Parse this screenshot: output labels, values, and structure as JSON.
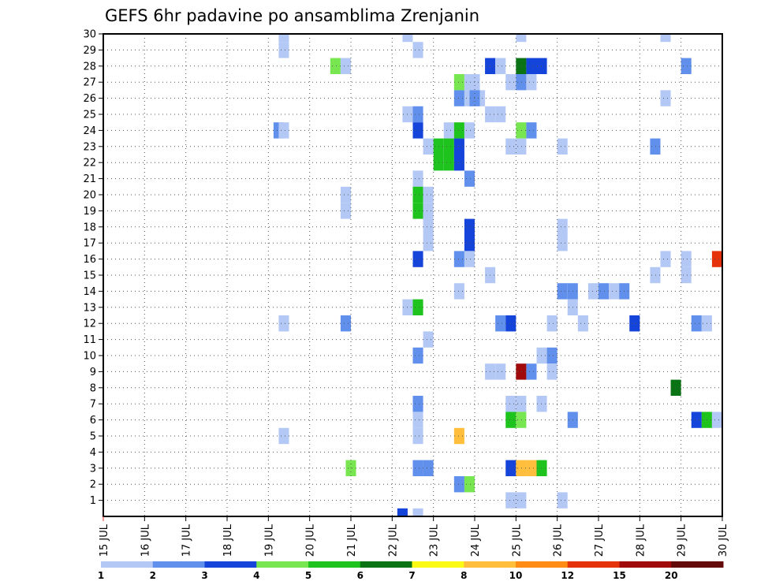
{
  "chart_data": {
    "type": "heatmap",
    "title": "GEFS 6hr padavine po ansamblima Zrenjanin",
    "xlabel": "",
    "ylabel": "",
    "x_tick_labels": [
      "15 JUL",
      "16 JUL",
      "17 JUL",
      "18 JUL",
      "19 JUL",
      "20 JUL",
      "21 JUL",
      "22 JUL",
      "23 JUL",
      "24 JUL",
      "25 JUL",
      "26 JUL",
      "27 JUL",
      "28 JUL",
      "29 JUL",
      "30 JUL"
    ],
    "y_tick_labels": [
      "1",
      "2",
      "3",
      "4",
      "5",
      "6",
      "7",
      "8",
      "9",
      "10",
      "11",
      "12",
      "13",
      "14",
      "15",
      "16",
      "17",
      "18",
      "19",
      "20",
      "21",
      "22",
      "23",
      "24",
      "25",
      "26",
      "27",
      "28",
      "29",
      "30"
    ],
    "xlim": [
      0,
      60
    ],
    "ylim": [
      0,
      30
    ],
    "grid": true,
    "colorbar": {
      "levels": [
        "1",
        "2",
        "3",
        "4",
        "5",
        "6",
        "7",
        "8",
        "10",
        "12",
        "15",
        "20"
      ],
      "colors": [
        "#b4c8f5",
        "#6090eb",
        "#1444d9",
        "#78e650",
        "#1ec31e",
        "#0a7414",
        "#fafa14",
        "#ffbe3c",
        "#ff8c14",
        "#e6320a",
        "#a00a0a",
        "#640a0a"
      ]
    },
    "cells": [
      [
        17.5,
        30,
        1
      ],
      [
        29.5,
        30,
        1
      ],
      [
        40.5,
        30,
        1
      ],
      [
        54.5,
        30,
        1
      ],
      [
        17.5,
        29,
        1
      ],
      [
        30.5,
        29,
        1
      ],
      [
        22.5,
        28,
        4
      ],
      [
        23.5,
        28,
        1
      ],
      [
        37.5,
        28,
        3
      ],
      [
        38.5,
        28,
        1
      ],
      [
        40.5,
        28,
        6
      ],
      [
        41.5,
        28,
        3
      ],
      [
        42.5,
        28,
        3
      ],
      [
        56.5,
        28,
        2
      ],
      [
        36,
        27,
        1
      ],
      [
        34.5,
        27,
        4
      ],
      [
        35.5,
        27,
        1
      ],
      [
        39.5,
        27,
        1
      ],
      [
        40.5,
        27,
        2
      ],
      [
        41.5,
        27,
        1
      ],
      [
        34.5,
        26,
        2
      ],
      [
        35.5,
        26,
        1
      ],
      [
        36.5,
        26,
        1
      ],
      [
        36,
        26,
        2
      ],
      [
        54.5,
        26,
        1
      ],
      [
        29.5,
        25,
        1
      ],
      [
        30.5,
        25,
        2
      ],
      [
        37.5,
        25,
        1
      ],
      [
        38.5,
        25,
        1
      ],
      [
        17,
        24,
        2
      ],
      [
        17.5,
        24,
        1
      ],
      [
        30.5,
        24,
        3
      ],
      [
        33.5,
        24,
        1
      ],
      [
        34.5,
        24,
        5
      ],
      [
        35.5,
        24,
        1
      ],
      [
        40.5,
        24,
        4
      ],
      [
        41.5,
        24,
        2
      ],
      [
        31.5,
        23,
        1
      ],
      [
        32.5,
        23,
        5
      ],
      [
        33.5,
        23,
        5
      ],
      [
        34.5,
        23,
        3
      ],
      [
        39.5,
        23,
        1
      ],
      [
        40.5,
        23,
        1
      ],
      [
        44.5,
        23,
        1
      ],
      [
        53.5,
        23,
        2
      ],
      [
        32.5,
        22,
        5
      ],
      [
        33.5,
        22,
        5
      ],
      [
        34.5,
        22,
        3
      ],
      [
        30.5,
        21,
        1
      ],
      [
        35.5,
        21,
        2
      ],
      [
        30.5,
        20,
        5
      ],
      [
        31.5,
        20,
        1
      ],
      [
        23.5,
        20,
        1
      ],
      [
        30.5,
        19,
        5
      ],
      [
        31.5,
        19,
        1
      ],
      [
        23.5,
        19,
        1
      ],
      [
        31.5,
        18,
        1
      ],
      [
        35.5,
        18,
        3
      ],
      [
        44.5,
        18,
        1
      ],
      [
        31.5,
        17,
        1
      ],
      [
        35.5,
        17,
        3
      ],
      [
        44.5,
        17,
        1
      ],
      [
        30.5,
        16,
        3
      ],
      [
        34.5,
        16,
        2
      ],
      [
        35.5,
        16,
        1
      ],
      [
        54.5,
        16,
        1
      ],
      [
        56.5,
        16,
        1
      ],
      [
        59.5,
        16,
        13
      ],
      [
        60.5,
        16,
        1
      ],
      [
        37.5,
        15,
        1
      ],
      [
        53.5,
        15,
        1
      ],
      [
        56.5,
        15,
        1
      ],
      [
        34.5,
        14,
        1
      ],
      [
        44.5,
        14,
        2
      ],
      [
        45.5,
        14,
        2
      ],
      [
        47.5,
        14,
        1
      ],
      [
        48.5,
        14,
        2
      ],
      [
        49.5,
        14,
        1
      ],
      [
        50.5,
        14,
        2
      ],
      [
        29.5,
        13,
        1
      ],
      [
        30.5,
        13,
        5
      ],
      [
        45.5,
        13,
        1
      ],
      [
        17.5,
        12,
        1
      ],
      [
        23.5,
        12,
        2
      ],
      [
        38.5,
        12,
        2
      ],
      [
        39.5,
        12,
        3
      ],
      [
        43.5,
        12,
        1
      ],
      [
        46.5,
        12,
        1
      ],
      [
        51.5,
        12,
        3
      ],
      [
        57.5,
        12,
        2
      ],
      [
        58.5,
        12,
        1
      ],
      [
        60.5,
        12,
        3
      ],
      [
        31.5,
        11,
        1
      ],
      [
        30.5,
        10,
        2
      ],
      [
        42.5,
        10,
        1
      ],
      [
        43.5,
        10,
        2
      ],
      [
        37.5,
        9,
        1
      ],
      [
        38.5,
        9,
        1
      ],
      [
        43.5,
        9,
        1
      ],
      [
        40.5,
        9,
        15
      ],
      [
        41.5,
        9,
        2
      ],
      [
        55.5,
        8,
        6
      ],
      [
        30.5,
        7,
        2
      ],
      [
        39.5,
        7,
        1
      ],
      [
        40.5,
        7,
        1
      ],
      [
        42.5,
        7,
        1
      ],
      [
        30.5,
        6,
        1
      ],
      [
        45.5,
        6,
        2
      ],
      [
        39.5,
        6,
        5
      ],
      [
        40.5,
        6,
        4
      ],
      [
        57.5,
        6,
        3
      ],
      [
        58.5,
        6,
        5
      ],
      [
        59.5,
        6,
        1
      ],
      [
        17.5,
        5,
        1
      ],
      [
        30.5,
        5,
        1
      ],
      [
        34.5,
        5,
        8
      ],
      [
        24,
        3,
        4
      ],
      [
        30.5,
        3,
        2
      ],
      [
        31.5,
        3,
        2
      ],
      [
        39.5,
        3,
        3
      ],
      [
        40.5,
        3,
        8
      ],
      [
        41.5,
        3,
        8
      ],
      [
        42.5,
        3,
        5
      ],
      [
        34.5,
        2,
        2
      ],
      [
        35.5,
        2,
        4
      ],
      [
        44.5,
        1,
        1
      ],
      [
        39.5,
        1,
        1
      ],
      [
        40.5,
        1,
        1
      ],
      [
        29,
        0,
        3
      ],
      [
        30.5,
        0,
        1
      ]
    ]
  }
}
